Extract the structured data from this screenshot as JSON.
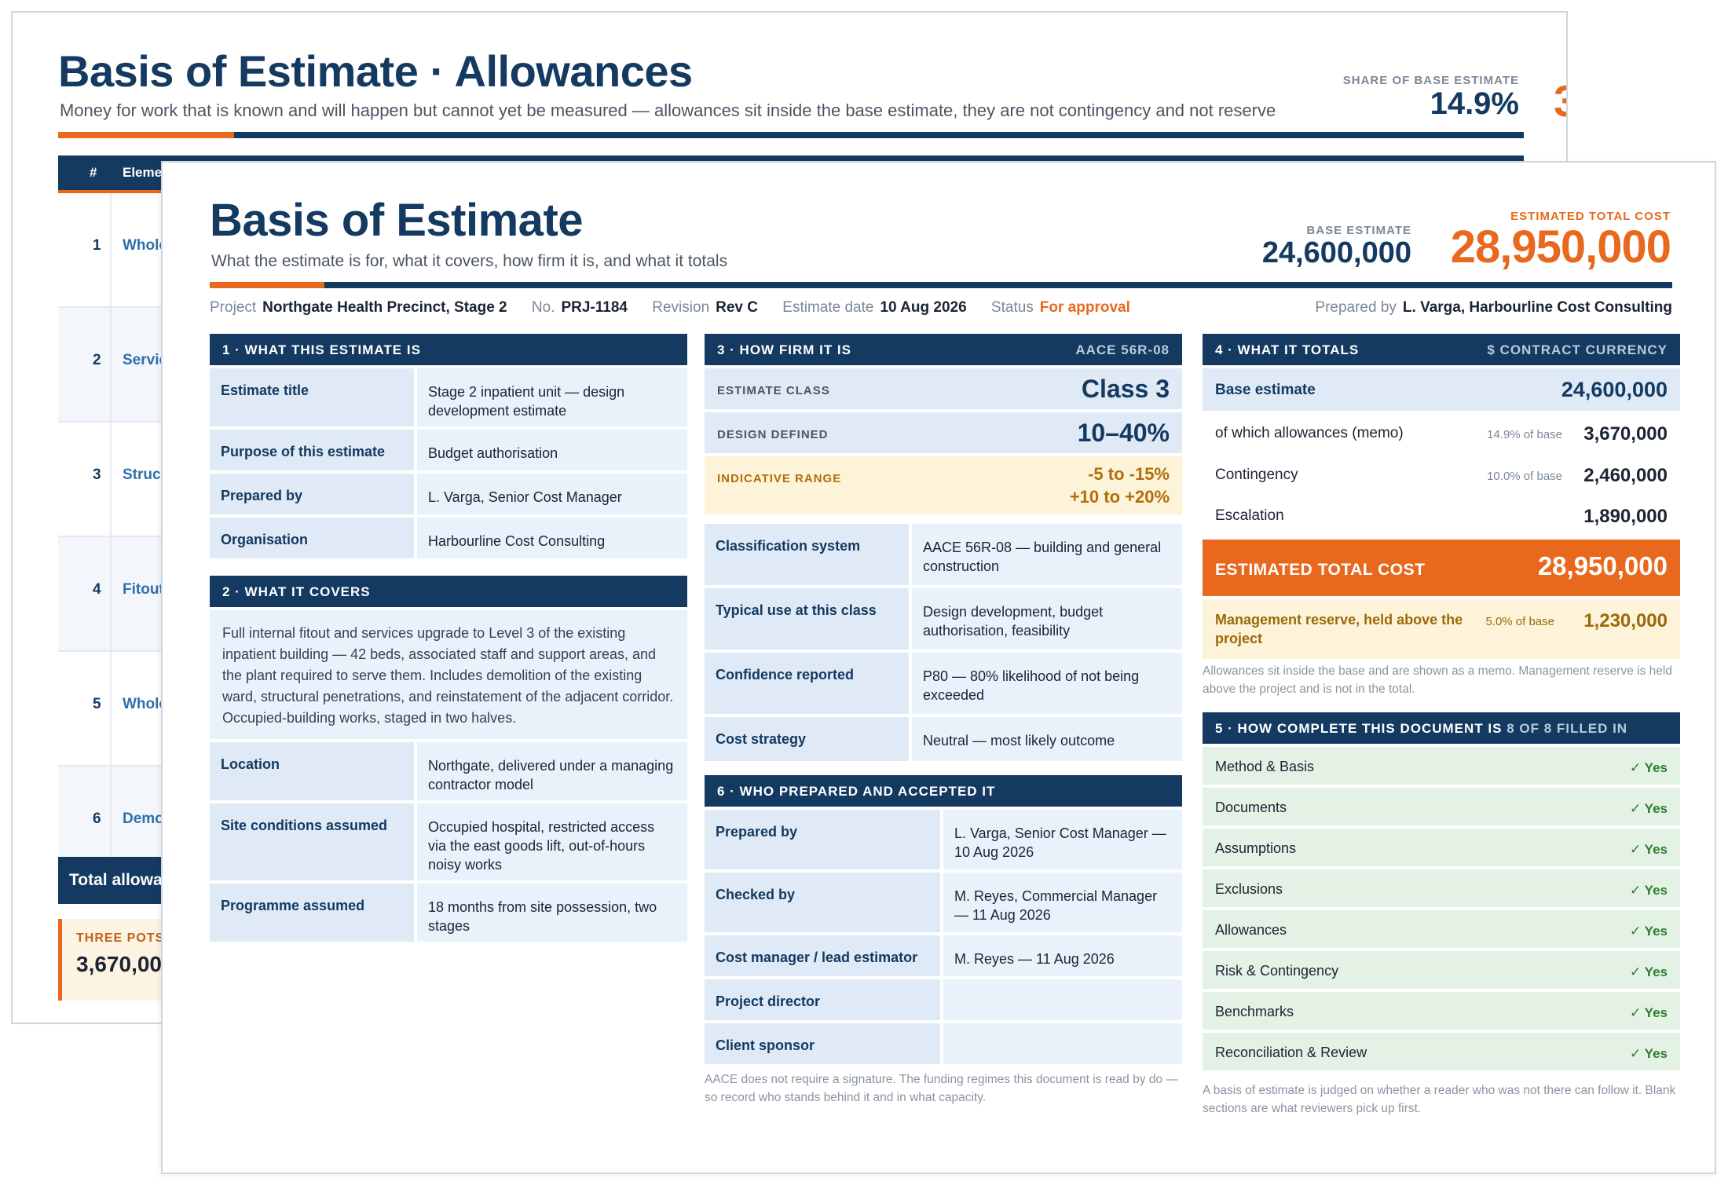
{
  "back_sheet": {
    "title": "Basis of Estimate  ·  Allowances",
    "subtitle": "Money for work that is known and will happen but cannot yet be measured — allowances sit inside the base estimate, they are not contingency and not reserve",
    "share_label": "SHARE OF BASE ESTIMATE",
    "share_value": "14.9%",
    "edge_glyph": "3",
    "table_headers": {
      "num": "#",
      "element": "Eleme"
    },
    "rows": [
      {
        "num": "1",
        "name": "Whole"
      },
      {
        "num": "2",
        "name": "Servic"
      },
      {
        "num": "3",
        "name": "Struc"
      },
      {
        "num": "4",
        "name": "Fitout"
      },
      {
        "num": "5",
        "name": "Whole"
      },
      {
        "num": "6",
        "name": "Demo"
      }
    ],
    "total_label": "Total allowa",
    "pots_label": "THREE POTS",
    "pots_value": "3,670,00"
  },
  "header": {
    "title": "Basis of Estimate",
    "subtitle": "What the estimate is for, what it covers, how firm it is, and what it totals",
    "base_label": "BASE ESTIMATE",
    "base_value": "24,600,000",
    "total_label": "ESTIMATED TOTAL COST",
    "total_value": "28,950,000"
  },
  "meta": {
    "project_label": "Project",
    "project": "Northgate Health Precinct, Stage 2",
    "no_label": "No.",
    "no": "PRJ-1184",
    "revision_label": "Revision",
    "revision": "Rev C",
    "date_label": "Estimate date",
    "date": "10 Aug 2026",
    "status_label": "Status",
    "status": "For approval",
    "prepared_label": "Prepared by",
    "prepared": "L. Varga, Harbourline Cost Consulting"
  },
  "s1": {
    "title": "1  ·  WHAT THIS ESTIMATE IS",
    "rows": [
      {
        "k": "Estimate title",
        "v": "Stage 2 inpatient unit — design development estimate"
      },
      {
        "k": "Purpose of this estimate",
        "v": "Budget authorisation"
      },
      {
        "k": "Prepared by",
        "v": "L. Varga, Senior Cost Manager"
      },
      {
        "k": "Organisation",
        "v": "Harbourline Cost Consulting"
      }
    ]
  },
  "s2": {
    "title": "2  ·  WHAT IT COVERS",
    "paragraph": "Full internal fitout and services upgrade to Level 3 of the existing inpatient building — 42 beds, associated staff and support areas, and the plant required to serve them. Includes demolition of the existing ward, structural penetrations, and reinstatement of the adjacent corridor. Occupied-building works, staged in two halves.",
    "rows": [
      {
        "k": "Location",
        "v": "Northgate, delivered under a managing contractor model"
      },
      {
        "k": "Site conditions assumed",
        "v": "Occupied hospital, restricted access via the east goods lift, out-of-hours noisy works"
      },
      {
        "k": "Programme assumed",
        "v": "18 months from site possession, two stages"
      }
    ]
  },
  "s3": {
    "title": "3  ·  HOW FIRM IT IS",
    "tag": "AACE 56R-08",
    "class_label": "ESTIMATE CLASS",
    "class_value": "Class 3",
    "design_label": "DESIGN DEFINED",
    "design_value": "10–40%",
    "range_label": "INDICATIVE RANGE",
    "range_low": "-5 to -15%",
    "range_high": "+10 to +20%",
    "rows": [
      {
        "k": "Classification system",
        "v": "AACE 56R-08 — building and general construction"
      },
      {
        "k": "Typical use at this class",
        "v": "Design development, budget authorisation, feasibility"
      },
      {
        "k": "Confidence reported",
        "v": "P80 — 80% likelihood of not being exceeded"
      },
      {
        "k": "Cost strategy",
        "v": "Neutral — most likely outcome"
      }
    ]
  },
  "s4": {
    "title": "4  ·  WHAT IT TOTALS",
    "tag": "$ CONTRACT CURRENCY",
    "base_label": "Base estimate",
    "base_value": "24,600,000",
    "allow_label": "of which allowances (memo)",
    "allow_pct": "14.9% of base",
    "allow_value": "3,670,000",
    "cont_label": "Contingency",
    "cont_pct": "10.0% of base",
    "cont_value": "2,460,000",
    "esc_label": "Escalation",
    "esc_value": "1,890,000",
    "total_label": "ESTIMATED TOTAL COST",
    "total_value": "28,950,000",
    "mr_label": "Management reserve, held above the project",
    "mr_pct": "5.0% of base",
    "mr_value": "1,230,000",
    "note": "Allowances sit inside the base and are shown as a memo. Management reserve is held above the project and is not in the total."
  },
  "s5": {
    "title": "5  ·  HOW COMPLETE THIS DOCUMENT IS",
    "tag": "8 OF 8 FILLED IN",
    "rows": [
      {
        "k": "Method & Basis",
        "v": "✓ Yes"
      },
      {
        "k": "Documents",
        "v": "✓ Yes"
      },
      {
        "k": "Assumptions",
        "v": "✓ Yes"
      },
      {
        "k": "Exclusions",
        "v": "✓ Yes"
      },
      {
        "k": "Allowances",
        "v": "✓ Yes"
      },
      {
        "k": "Risk & Contingency",
        "v": "✓ Yes"
      },
      {
        "k": "Benchmarks",
        "v": "✓ Yes"
      },
      {
        "k": "Reconciliation & Review",
        "v": "✓ Yes"
      }
    ],
    "note": "A basis of estimate is judged on whether a reader who was not there can follow it. Blank sections are what reviewers pick up first."
  },
  "s6": {
    "title": "6  ·  WHO PREPARED AND ACCEPTED IT",
    "rows": [
      {
        "k": "Prepared by",
        "v": "L. Varga, Senior Cost Manager — 10 Aug 2026"
      },
      {
        "k": "Checked by",
        "v": "M. Reyes, Commercial Manager — 11 Aug 2026"
      },
      {
        "k": "Cost manager / lead estimator",
        "v": "M. Reyes — 11 Aug 2026"
      },
      {
        "k": "Project director",
        "v": ""
      },
      {
        "k": "Client sponsor",
        "v": ""
      }
    ],
    "note": "AACE does not require a signature. The funding regimes this document is read by do — so record who stands behind it and in what capacity."
  }
}
